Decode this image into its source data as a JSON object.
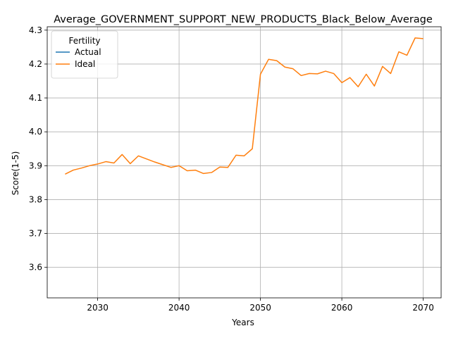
{
  "chart_data": {
    "type": "line",
    "title": "Average_GOVERNMENT_SUPPORT_NEW_PRODUCTS_Black_Below_Average",
    "xlabel": "Years",
    "ylabel": "Score(1-5)",
    "xlim": [
      2023.8,
      2072.2
    ],
    "ylim": [
      3.51,
      4.31
    ],
    "xticks": [
      2030,
      2040,
      2050,
      2060,
      2070
    ],
    "yticks": [
      3.6,
      3.7,
      3.8,
      3.9,
      4.0,
      4.1,
      4.2,
      4.3
    ],
    "grid": true,
    "legend": {
      "title": "Fertility",
      "placement": "upper-left"
    },
    "series": [
      {
        "name": "Actual",
        "color": "#1f77b4",
        "x": [],
        "values": []
      },
      {
        "name": "Ideal",
        "color": "#ff7f0e",
        "x": [
          2026,
          2027,
          2028,
          2029,
          2030,
          2031,
          2032,
          2033,
          2034,
          2035,
          2036,
          2037,
          2038,
          2039,
          2040,
          2041,
          2042,
          2043,
          2044,
          2045,
          2046,
          2047,
          2048,
          2049,
          2050,
          2051,
          2052,
          2053,
          2054,
          2055,
          2056,
          2057,
          2058,
          2059,
          2060,
          2061,
          2062,
          2063,
          2064,
          2065,
          2066,
          2067,
          2068,
          2069,
          2070
        ],
        "values": [
          3.875,
          3.887,
          3.893,
          3.9,
          3.905,
          3.912,
          3.908,
          3.933,
          3.906,
          3.929,
          3.92,
          3.911,
          3.903,
          3.895,
          3.9,
          3.885,
          3.887,
          3.877,
          3.88,
          3.896,
          3.895,
          3.931,
          3.929,
          3.95,
          4.17,
          4.214,
          4.21,
          4.191,
          4.186,
          4.166,
          4.172,
          4.171,
          4.179,
          4.172,
          4.145,
          4.16,
          4.133,
          4.17,
          4.135,
          4.193,
          4.172,
          4.236,
          4.226,
          4.277,
          4.275
        ]
      }
    ]
  }
}
